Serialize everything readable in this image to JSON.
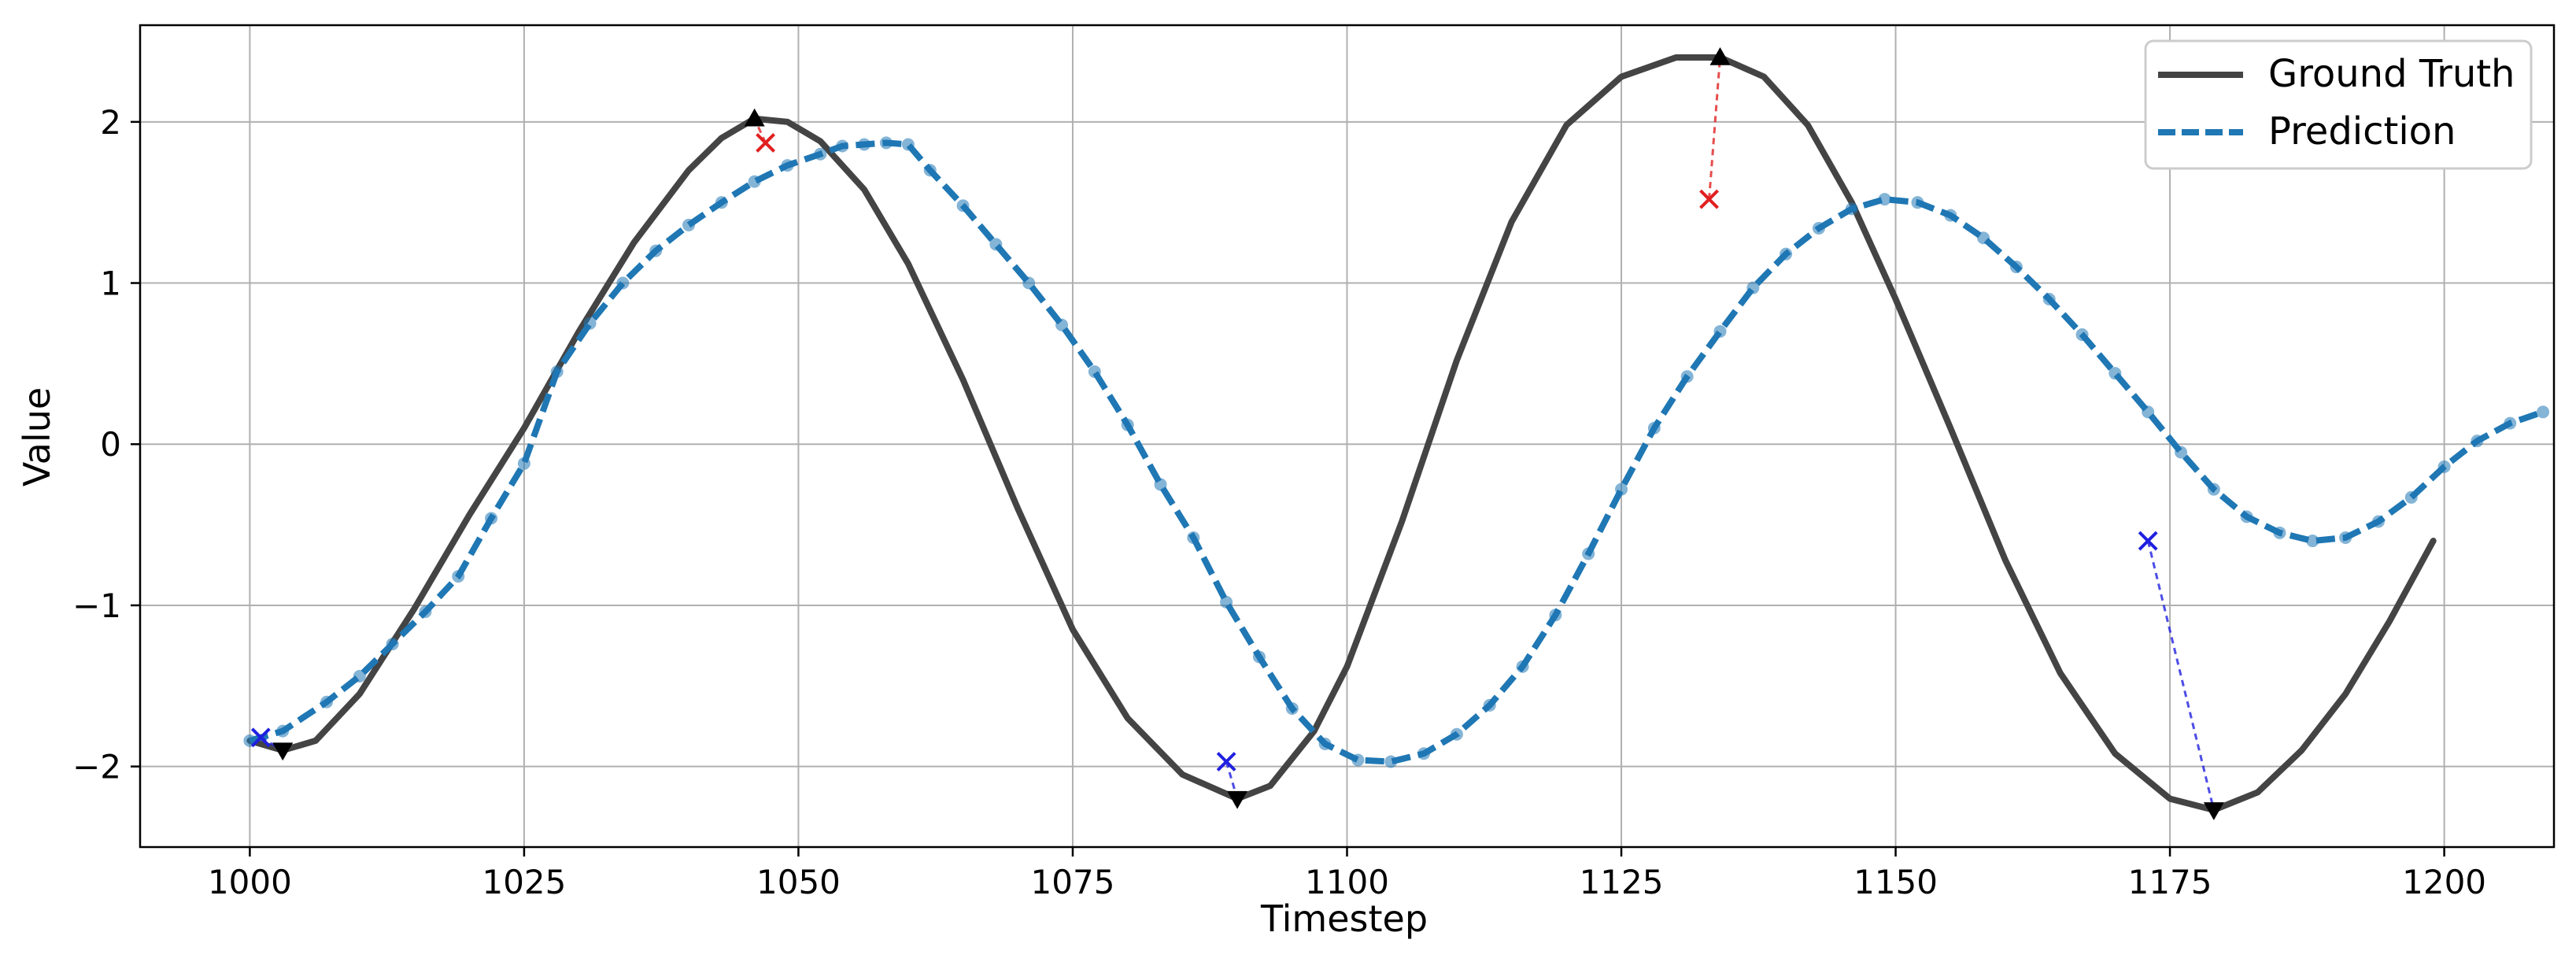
{
  "chart_data": {
    "type": "line",
    "xlabel": "Timestep",
    "ylabel": "Value",
    "xlim": [
      990,
      1210
    ],
    "ylim": [
      -2.5,
      2.6
    ],
    "x_ticks": [
      1000,
      1025,
      1050,
      1075,
      1100,
      1125,
      1150,
      1175,
      1200
    ],
    "y_ticks": [
      -2,
      -1,
      0,
      1,
      2
    ],
    "y_tick_labels": [
      "−2",
      "−1",
      "0",
      "1",
      "2"
    ],
    "grid": true,
    "legend_position": "top-right",
    "series": [
      {
        "name": "Ground Truth",
        "color": "#444444",
        "style": "solid",
        "points": [
          [
            1000,
            -1.84
          ],
          [
            1003,
            -1.9
          ],
          [
            1006,
            -1.84
          ],
          [
            1010,
            -1.55
          ],
          [
            1015,
            -1.02
          ],
          [
            1020,
            -0.44
          ],
          [
            1025,
            0.1
          ],
          [
            1030,
            0.7
          ],
          [
            1035,
            1.25
          ],
          [
            1040,
            1.7
          ],
          [
            1043,
            1.9
          ],
          [
            1046,
            2.02
          ],
          [
            1049,
            2.0
          ],
          [
            1052,
            1.88
          ],
          [
            1056,
            1.58
          ],
          [
            1060,
            1.12
          ],
          [
            1065,
            0.4
          ],
          [
            1070,
            -0.4
          ],
          [
            1075,
            -1.15
          ],
          [
            1080,
            -1.7
          ],
          [
            1085,
            -2.05
          ],
          [
            1090,
            -2.2
          ],
          [
            1093,
            -2.12
          ],
          [
            1097,
            -1.78
          ],
          [
            1100,
            -1.38
          ],
          [
            1105,
            -0.48
          ],
          [
            1110,
            0.52
          ],
          [
            1115,
            1.38
          ],
          [
            1120,
            1.98
          ],
          [
            1125,
            2.28
          ],
          [
            1130,
            2.4
          ],
          [
            1134,
            2.4
          ],
          [
            1138,
            2.28
          ],
          [
            1142,
            1.98
          ],
          [
            1146,
            1.5
          ],
          [
            1150,
            0.9
          ],
          [
            1155,
            0.1
          ],
          [
            1160,
            -0.72
          ],
          [
            1165,
            -1.42
          ],
          [
            1170,
            -1.92
          ],
          [
            1175,
            -2.2
          ],
          [
            1179,
            -2.27
          ],
          [
            1183,
            -2.16
          ],
          [
            1187,
            -1.9
          ],
          [
            1191,
            -1.55
          ],
          [
            1195,
            -1.1
          ],
          [
            1199,
            -0.6
          ]
        ]
      },
      {
        "name": "Prediction",
        "color": "#1f77b4",
        "style": "dashed",
        "points": [
          [
            1000,
            -1.84
          ],
          [
            1003,
            -1.78
          ],
          [
            1007,
            -1.6
          ],
          [
            1010,
            -1.44
          ],
          [
            1013,
            -1.24
          ],
          [
            1016,
            -1.04
          ],
          [
            1019,
            -0.82
          ],
          [
            1022,
            -0.46
          ],
          [
            1025,
            -0.12
          ],
          [
            1028,
            0.45
          ],
          [
            1031,
            0.75
          ],
          [
            1034,
            1.0
          ],
          [
            1037,
            1.2
          ],
          [
            1040,
            1.36
          ],
          [
            1043,
            1.5
          ],
          [
            1046,
            1.63
          ],
          [
            1049,
            1.73
          ],
          [
            1052,
            1.8
          ],
          [
            1054,
            1.85
          ],
          [
            1056,
            1.86
          ],
          [
            1058,
            1.87
          ],
          [
            1060,
            1.86
          ],
          [
            1062,
            1.7
          ],
          [
            1065,
            1.48
          ],
          [
            1068,
            1.24
          ],
          [
            1071,
            1.0
          ],
          [
            1074,
            0.74
          ],
          [
            1077,
            0.45
          ],
          [
            1080,
            0.12
          ],
          [
            1083,
            -0.25
          ],
          [
            1086,
            -0.58
          ],
          [
            1089,
            -0.98
          ],
          [
            1092,
            -1.32
          ],
          [
            1095,
            -1.64
          ],
          [
            1098,
            -1.86
          ],
          [
            1101,
            -1.96
          ],
          [
            1104,
            -1.97
          ],
          [
            1107,
            -1.92
          ],
          [
            1110,
            -1.8
          ],
          [
            1113,
            -1.62
          ],
          [
            1116,
            -1.38
          ],
          [
            1119,
            -1.06
          ],
          [
            1122,
            -0.68
          ],
          [
            1125,
            -0.28
          ],
          [
            1128,
            0.1
          ],
          [
            1131,
            0.42
          ],
          [
            1134,
            0.7
          ],
          [
            1137,
            0.97
          ],
          [
            1140,
            1.18
          ],
          [
            1143,
            1.34
          ],
          [
            1146,
            1.46
          ],
          [
            1149,
            1.52
          ],
          [
            1152,
            1.5
          ],
          [
            1155,
            1.42
          ],
          [
            1158,
            1.28
          ],
          [
            1161,
            1.1
          ],
          [
            1164,
            0.9
          ],
          [
            1167,
            0.68
          ],
          [
            1170,
            0.44
          ],
          [
            1173,
            0.2
          ],
          [
            1176,
            -0.05
          ],
          [
            1179,
            -0.28
          ],
          [
            1182,
            -0.45
          ],
          [
            1185,
            -0.55
          ],
          [
            1188,
            -0.6
          ],
          [
            1191,
            -0.58
          ],
          [
            1194,
            -0.48
          ],
          [
            1197,
            -0.33
          ],
          [
            1200,
            -0.14
          ],
          [
            1203,
            0.02
          ],
          [
            1206,
            0.13
          ],
          [
            1209,
            0.2
          ]
        ]
      }
    ],
    "annotations": [
      {
        "type": "peak",
        "gt": [
          1046,
          2.02
        ],
        "pred": [
          1047,
          1.87
        ],
        "color": "#e02020"
      },
      {
        "type": "peak",
        "gt": [
          1134,
          2.4
        ],
        "pred": [
          1133,
          1.52
        ],
        "color": "#e02020"
      },
      {
        "type": "trough",
        "gt": [
          1003,
          -1.9
        ],
        "pred": [
          1001,
          -1.82
        ],
        "color": "#2020e0"
      },
      {
        "type": "trough",
        "gt": [
          1090,
          -2.2
        ],
        "pred": [
          1089,
          -1.97
        ],
        "color": "#2020e0"
      },
      {
        "type": "trough",
        "gt": [
          1179,
          -2.27
        ],
        "pred": [
          1173,
          -0.6
        ],
        "color": "#2020e0"
      }
    ]
  }
}
